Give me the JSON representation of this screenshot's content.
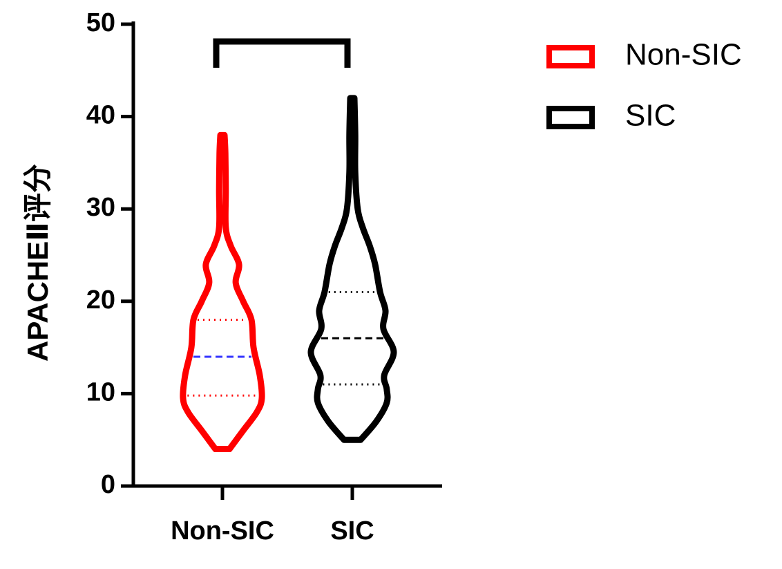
{
  "chart_data": {
    "type": "violin",
    "y_label": "APACHEⅡ评分",
    "categories": [
      "Non-SIC",
      "SIC"
    ],
    "ylim": [
      0,
      50
    ],
    "yticks": [
      0,
      10,
      20,
      30,
      40,
      50
    ],
    "legend": "upper right",
    "series": [
      {
        "name": "Non-SIC",
        "color": "#ff0000",
        "median_color": "#3333ff",
        "median": 14,
        "q1": 9.8,
        "q3": 18,
        "profile_y": [
          4,
          6,
          8,
          9.5,
          12,
          15,
          18,
          20,
          22,
          24,
          26,
          28,
          32,
          36,
          38
        ],
        "profile_width": [
          0.17,
          0.5,
          0.83,
          0.95,
          0.9,
          0.75,
          0.7,
          0.5,
          0.32,
          0.4,
          0.2,
          0.08,
          0.08,
          0.07,
          0.05
        ]
      },
      {
        "name": "SIC",
        "color": "#000000",
        "median_color": "#000000",
        "median": 16,
        "q1": 11,
        "q3": 21,
        "profile_y": [
          5,
          7,
          9,
          10.5,
          12,
          14.5,
          17,
          19,
          21,
          24,
          26,
          28,
          30,
          34,
          38,
          42
        ],
        "profile_width": [
          0.2,
          0.58,
          0.83,
          0.83,
          0.77,
          1,
          0.75,
          0.8,
          0.67,
          0.55,
          0.42,
          0.25,
          0.13,
          0.07,
          0.07,
          0.05
        ]
      }
    ]
  }
}
